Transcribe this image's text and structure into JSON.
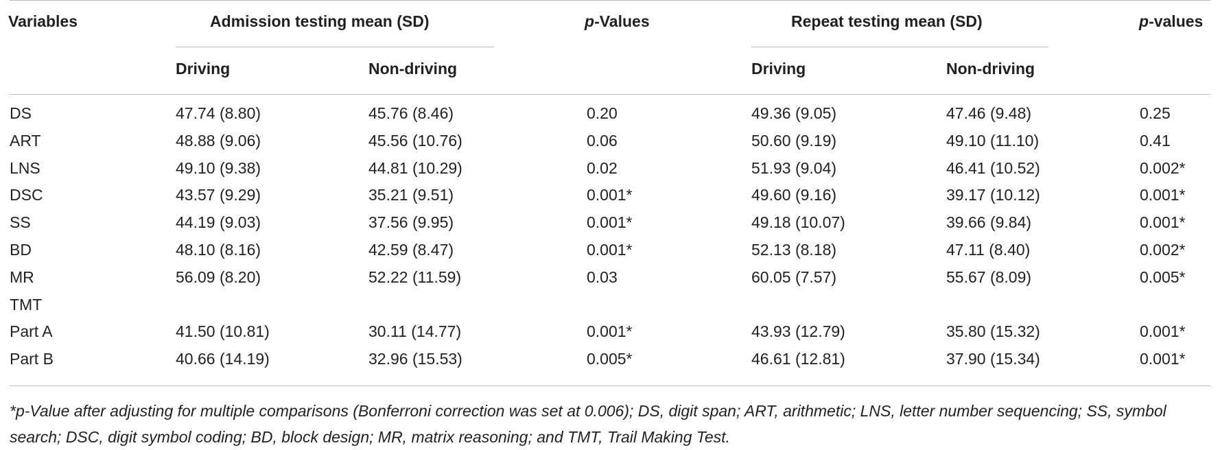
{
  "table": {
    "header": {
      "variables": "Variables",
      "admission_group": "Admission testing mean (SD)",
      "p_values_admission_prefix": "p",
      "p_values_admission_suffix": "-Values",
      "repeat_group": "Repeat testing mean (SD)",
      "p_values_repeat_prefix": "p",
      "p_values_repeat_suffix": "-values",
      "driving": "Driving",
      "non_driving": "Non-driving",
      "driving_repeat": "Driving",
      "non_driving_repeat": "Non-driving"
    },
    "rows": [
      {
        "variable": "DS",
        "adm_driving": "47.74 (8.80)",
        "adm_nondriving": "45.76 (8.46)",
        "adm_p": "0.20",
        "rep_driving": "49.36 (9.05)",
        "rep_nondriving": "47.46 (9.48)",
        "rep_p": "0.25"
      },
      {
        "variable": "ART",
        "adm_driving": "48.88 (9.06)",
        "adm_nondriving": "45.56 (10.76)",
        "adm_p": "0.06",
        "rep_driving": "50.60 (9.19)",
        "rep_nondriving": "49.10 (11.10)",
        "rep_p": "0.41"
      },
      {
        "variable": "LNS",
        "adm_driving": "49.10 (9.38)",
        "adm_nondriving": "44.81 (10.29)",
        "adm_p": "0.02",
        "rep_driving": "51.93 (9.04)",
        "rep_nondriving": "46.41 (10.52)",
        "rep_p": "0.002*"
      },
      {
        "variable": "DSC",
        "adm_driving": "43.57 (9.29)",
        "adm_nondriving": "35.21 (9.51)",
        "adm_p": "0.001*",
        "rep_driving": "49.60 (9.16)",
        "rep_nondriving": "39.17 (10.12)",
        "rep_p": "0.001*"
      },
      {
        "variable": "SS",
        "adm_driving": "44.19 (9.03)",
        "adm_nondriving": "37.56 (9.95)",
        "adm_p": "0.001*",
        "rep_driving": "49.18 (10.07)",
        "rep_nondriving": "39.66 (9.84)",
        "rep_p": "0.001*"
      },
      {
        "variable": "BD",
        "adm_driving": "48.10 (8.16)",
        "adm_nondriving": "42.59 (8.47)",
        "adm_p": "0.001*",
        "rep_driving": "52.13 (8.18)",
        "rep_nondriving": "47.11 (8.40)",
        "rep_p": "0.002*"
      },
      {
        "variable": "MR",
        "adm_driving": "56.09 (8.20)",
        "adm_nondriving": "52.22 (11.59)",
        "adm_p": "0.03",
        "rep_driving": "60.05 (7.57)",
        "rep_nondriving": "55.67 (8.09)",
        "rep_p": "0.005*"
      },
      {
        "variable": "TMT",
        "adm_driving": "",
        "adm_nondriving": "",
        "adm_p": "",
        "rep_driving": "",
        "rep_nondriving": "",
        "rep_p": ""
      },
      {
        "variable": "Part A",
        "adm_driving": "41.50 (10.81)",
        "adm_nondriving": "30.11 (14.77)",
        "adm_p": "0.001*",
        "rep_driving": "43.93 (12.79)",
        "rep_nondriving": "35.80 (15.32)",
        "rep_p": "0.001*"
      },
      {
        "variable": "Part B",
        "adm_driving": "40.66 (14.19)",
        "adm_nondriving": "32.96 (15.53)",
        "adm_p": "0.005*",
        "rep_driving": "46.61 (12.81)",
        "rep_nondriving": "37.90 (15.34)",
        "rep_p": "0.001*"
      }
    ]
  },
  "footnote": {
    "line1": "*p-Value after adjusting for multiple comparisons (Bonferroni correction was set at 0.006); DS, digit span; ART, arithmetic; LNS, letter number sequencing; SS, symbol",
    "line2": "search; DSC, digit symbol coding; BD, block design; MR, matrix reasoning; and TMT, Trail Making Test."
  }
}
